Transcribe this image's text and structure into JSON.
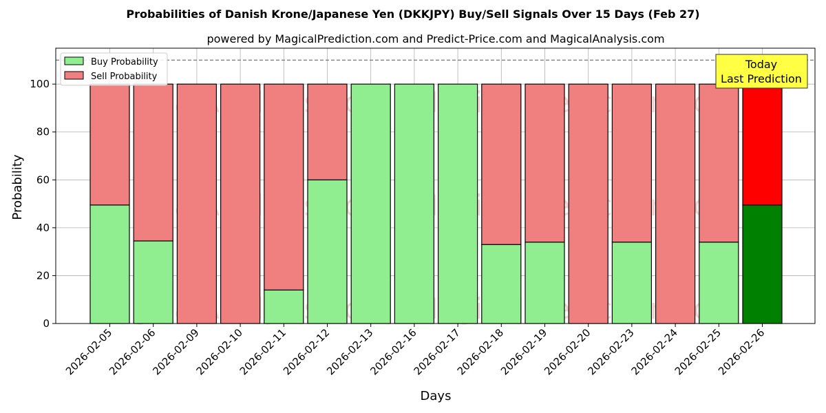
{
  "chart_data": {
    "type": "bar",
    "stacked": true,
    "title": "Probabilities of Danish Krone/Japanese Yen (DKKJPY) Buy/Sell Signals Over 15 Days (Feb 27)",
    "subtitle": "powered by MagicalPrediction.com and Predict-Price.com and MagicalAnalysis.com",
    "xlabel": "Days",
    "ylabel": "Probability",
    "ylim": [
      0,
      115
    ],
    "yticks": [
      0,
      20,
      40,
      60,
      80,
      100
    ],
    "grid": true,
    "legend_position": "top-left",
    "reference_line": 110,
    "categories": [
      "2026-02-05",
      "2026-02-06",
      "2026-02-09",
      "2026-02-10",
      "2026-02-11",
      "2026-02-12",
      "2026-02-13",
      "2026-02-16",
      "2026-02-17",
      "2026-02-18",
      "2026-02-19",
      "2026-02-20",
      "2026-02-23",
      "2026-02-24",
      "2026-02-25",
      "2026-02-26"
    ],
    "series": [
      {
        "name": "Buy Probability",
        "color": "#90ee90",
        "highlight_color": "#008000",
        "values": [
          49.5,
          34.5,
          0,
          0,
          14,
          60,
          100,
          100,
          100,
          33,
          34,
          0,
          34,
          0,
          34,
          49.5
        ]
      },
      {
        "name": "Sell Probability",
        "color": "#f08080",
        "highlight_color": "#ff0000",
        "values": [
          50.5,
          65.5,
          100,
          100,
          86,
          40,
          0,
          0,
          0,
          67,
          66,
          100,
          66,
          100,
          66,
          50.5
        ]
      }
    ],
    "highlight_index": 15,
    "annotation": {
      "lines": [
        "Today",
        "Last Prediction"
      ],
      "bg_color": "#ffff44"
    },
    "watermarks": [
      "MagicalAnalysis.com",
      "MagicalPrediction.com"
    ]
  }
}
